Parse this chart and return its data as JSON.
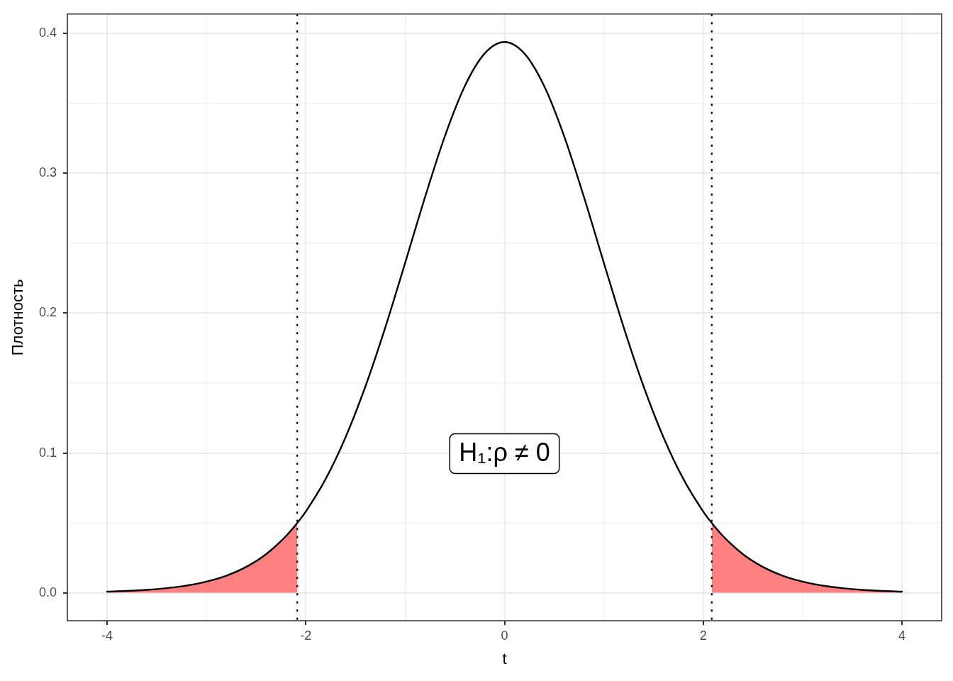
{
  "chart_data": {
    "type": "line",
    "xlabel": "t",
    "ylabel": "Плотность",
    "x": [
      -4,
      -3.8,
      -3.6,
      -3.4,
      -3.2,
      -3,
      -2.8,
      -2.6,
      -2.4,
      -2.2,
      -2.086,
      -2,
      -1.8,
      -1.6,
      -1.4,
      -1.2,
      -1,
      -0.8,
      -0.6,
      -0.4,
      -0.2,
      0,
      0.2,
      0.4,
      0.6,
      0.8,
      1,
      1.2,
      1.4,
      1.6,
      1.8,
      2,
      2.086,
      2.2,
      2.4,
      2.6,
      2.8,
      3,
      3.2,
      3.4,
      3.6,
      3.8,
      4
    ],
    "series": [
      {
        "color": "#000000",
        "values": [
          0.0008,
          0.0013,
          0.0021,
          0.0033,
          0.0051,
          0.008,
          0.0122,
          0.0185,
          0.0276,
          0.0405,
          0.0499,
          0.0581,
          0.0814,
          0.1112,
          0.1476,
          0.1898,
          0.236,
          0.283,
          0.3267,
          0.3624,
          0.3858,
          0.394,
          0.3858,
          0.3624,
          0.3267,
          0.283,
          0.236,
          0.1898,
          0.1476,
          0.1112,
          0.0814,
          0.0581,
          0.0499,
          0.0405,
          0.0276,
          0.0185,
          0.0122,
          0.008,
          0.0051,
          0.0033,
          0.0021,
          0.0013,
          0.0008
        ]
      },
      {
        "type": "area",
        "color": "#ff8080",
        "x": [
          -4,
          -3.8,
          -3.6,
          -3.4,
          -3.2,
          -3,
          -2.8,
          -2.6,
          -2.4,
          -2.2,
          -2.086
        ],
        "values": [
          0.0008,
          0.0013,
          0.0021,
          0.0033,
          0.0051,
          0.008,
          0.0122,
          0.0185,
          0.0276,
          0.0405,
          0.0499
        ]
      },
      {
        "type": "area",
        "color": "#ff8080",
        "x": [
          2.086,
          2.2,
          2.4,
          2.6,
          2.8,
          3,
          3.2,
          3.4,
          3.6,
          3.8,
          4
        ],
        "values": [
          0.0499,
          0.0405,
          0.0276,
          0.0185,
          0.0122,
          0.008,
          0.0051,
          0.0033,
          0.0021,
          0.0013,
          0.0008
        ]
      }
    ],
    "xlim": [
      -4.4,
      4.4
    ],
    "ylim": [
      -0.02,
      0.414
    ],
    "xticks": [
      -4,
      -2,
      0,
      2,
      4
    ],
    "yticks": [
      {
        "value": 0,
        "label": "0.0"
      },
      0.1,
      0.2,
      0.3,
      0.4
    ],
    "grid": true,
    "marker": "none",
    "line_style": "solid",
    "ref_lines": [
      {
        "axis": "x",
        "value": -2.086,
        "color": "#000000",
        "line_style": "dotted"
      },
      {
        "axis": "x",
        "value": 2.086,
        "color": "#000000",
        "line_style": "dotted"
      }
    ],
    "annotations": [
      "H₁:ρ ≠ 0"
    ]
  }
}
